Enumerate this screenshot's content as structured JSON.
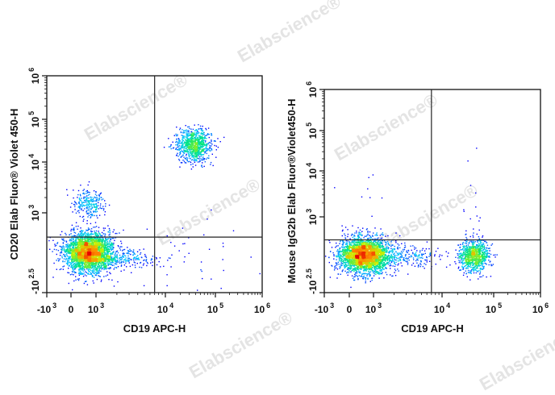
{
  "watermark": "Elabscience®",
  "chart_data": [
    {
      "type": "scatter",
      "subtype": "flow-cytometry density dot plot",
      "xlabel": "CD19  APC-H",
      "ylabel": "CD20 Elab Fluor® Violet 450-H",
      "xscale": "biexponential",
      "yscale": "biexponential",
      "xlim": [
        -1000,
        1000000
      ],
      "ylim": [
        -316,
        1000000
      ],
      "xticks": [
        {
          "v": -1000,
          "base": "-10",
          "exp": "3"
        },
        {
          "v": 0,
          "base": "0",
          "exp": ""
        },
        {
          "v": 1000,
          "base": "10",
          "exp": "3"
        },
        {
          "v": 10000,
          "base": "10",
          "exp": "4"
        },
        {
          "v": 100000,
          "base": "10",
          "exp": "5"
        },
        {
          "v": 1000000,
          "base": "10",
          "exp": "6"
        }
      ],
      "yticks": [
        {
          "v": -316,
          "base": "-10",
          "exp": "2.5"
        },
        {
          "v": 1000,
          "base": "10",
          "exp": "3"
        },
        {
          "v": 10000,
          "base": "10",
          "exp": "4"
        },
        {
          "v": 100000,
          "base": "10",
          "exp": "5"
        },
        {
          "v": 1000000,
          "base": "10",
          "exp": "6"
        }
      ],
      "quadrant_gate": {
        "x": 7000,
        "y": 600
      },
      "color_scale": "density (blue-cyan-green-yellow-red)",
      "populations": [
        {
          "center": [
            700,
            350
          ],
          "events": 3200
        },
        {
          "center": [
            37000,
            25000
          ],
          "events": 900
        },
        {
          "center": [
            700,
            1500
          ],
          "events": 260
        },
        {
          "center": [
            3000,
            250
          ],
          "events": 180
        },
        {
          "center": [
            30000,
            200
          ],
          "events": 40
        }
      ]
    },
    {
      "type": "scatter",
      "subtype": "flow-cytometry density dot plot",
      "xlabel": "CD19 APC-H",
      "ylabel": "Mouse IgG2b Elab Fluor®Violet450-H",
      "xscale": "biexponential",
      "yscale": "biexponential",
      "xlim": [
        -1000,
        1000000
      ],
      "ylim": [
        -316,
        1000000
      ],
      "xticks": [
        {
          "v": -1000,
          "base": "-10",
          "exp": "3"
        },
        {
          "v": 0,
          "base": "0",
          "exp": ""
        },
        {
          "v": 1000,
          "base": "10",
          "exp": "3"
        },
        {
          "v": 10000,
          "base": "10",
          "exp": "4"
        },
        {
          "v": 100000,
          "base": "10",
          "exp": "5"
        },
        {
          "v": 1000000,
          "base": "10",
          "exp": "6"
        }
      ],
      "yticks": [
        {
          "v": -316,
          "base": "-10",
          "exp": "2.5"
        },
        {
          "v": 1000,
          "base": "10",
          "exp": "3"
        },
        {
          "v": 10000,
          "base": "10",
          "exp": "4"
        },
        {
          "v": 100000,
          "base": "10",
          "exp": "5"
        },
        {
          "v": 1000000,
          "base": "10",
          "exp": "6"
        }
      ],
      "quadrant_gate": {
        "x": 7000,
        "y": 600
      },
      "color_scale": "density (blue-cyan-green-yellow-red)",
      "populations": [
        {
          "center": [
            630,
            340
          ],
          "events": 3000
        },
        {
          "center": [
            42000,
            330
          ],
          "events": 900
        },
        {
          "center": [
            3500,
            320
          ],
          "events": 200
        },
        {
          "center": [
            600,
            1200
          ],
          "events": 12
        },
        {
          "center": [
            40000,
            1500
          ],
          "events": 14
        }
      ]
    }
  ]
}
